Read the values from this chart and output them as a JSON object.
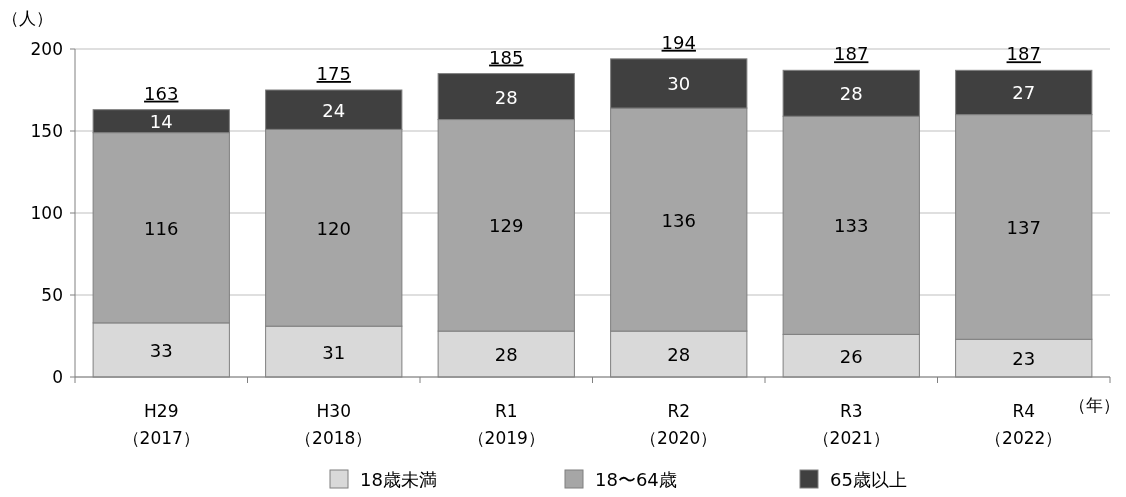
{
  "chart_data": {
    "type": "bar",
    "stacked": true,
    "categories": [
      "H29\n（2017）",
      "H30\n（2018）",
      "R1\n（2019）",
      "R2\n（2020）",
      "R3\n（2021）",
      "R4\n（2022）"
    ],
    "series": [
      {
        "name": "18歳未満",
        "color": "#d9d9d9",
        "values": [
          33,
          31,
          28,
          28,
          26,
          23
        ]
      },
      {
        "name": "18〜64歳",
        "color": "#a6a6a6",
        "values": [
          116,
          120,
          129,
          136,
          133,
          137
        ]
      },
      {
        "name": "65歳以上",
        "color": "#404040",
        "values": [
          14,
          24,
          28,
          30,
          28,
          27
        ]
      }
    ],
    "totals": [
      "163",
      "175",
      "185",
      "194",
      "187",
      "187"
    ],
    "ylabel": "（人）",
    "xlabel": "（年）",
    "ylim": [
      0,
      200
    ],
    "yticks": [
      0,
      50,
      100,
      150,
      200
    ],
    "grid": "y",
    "legend": "bottom",
    "data_labels": true
  }
}
